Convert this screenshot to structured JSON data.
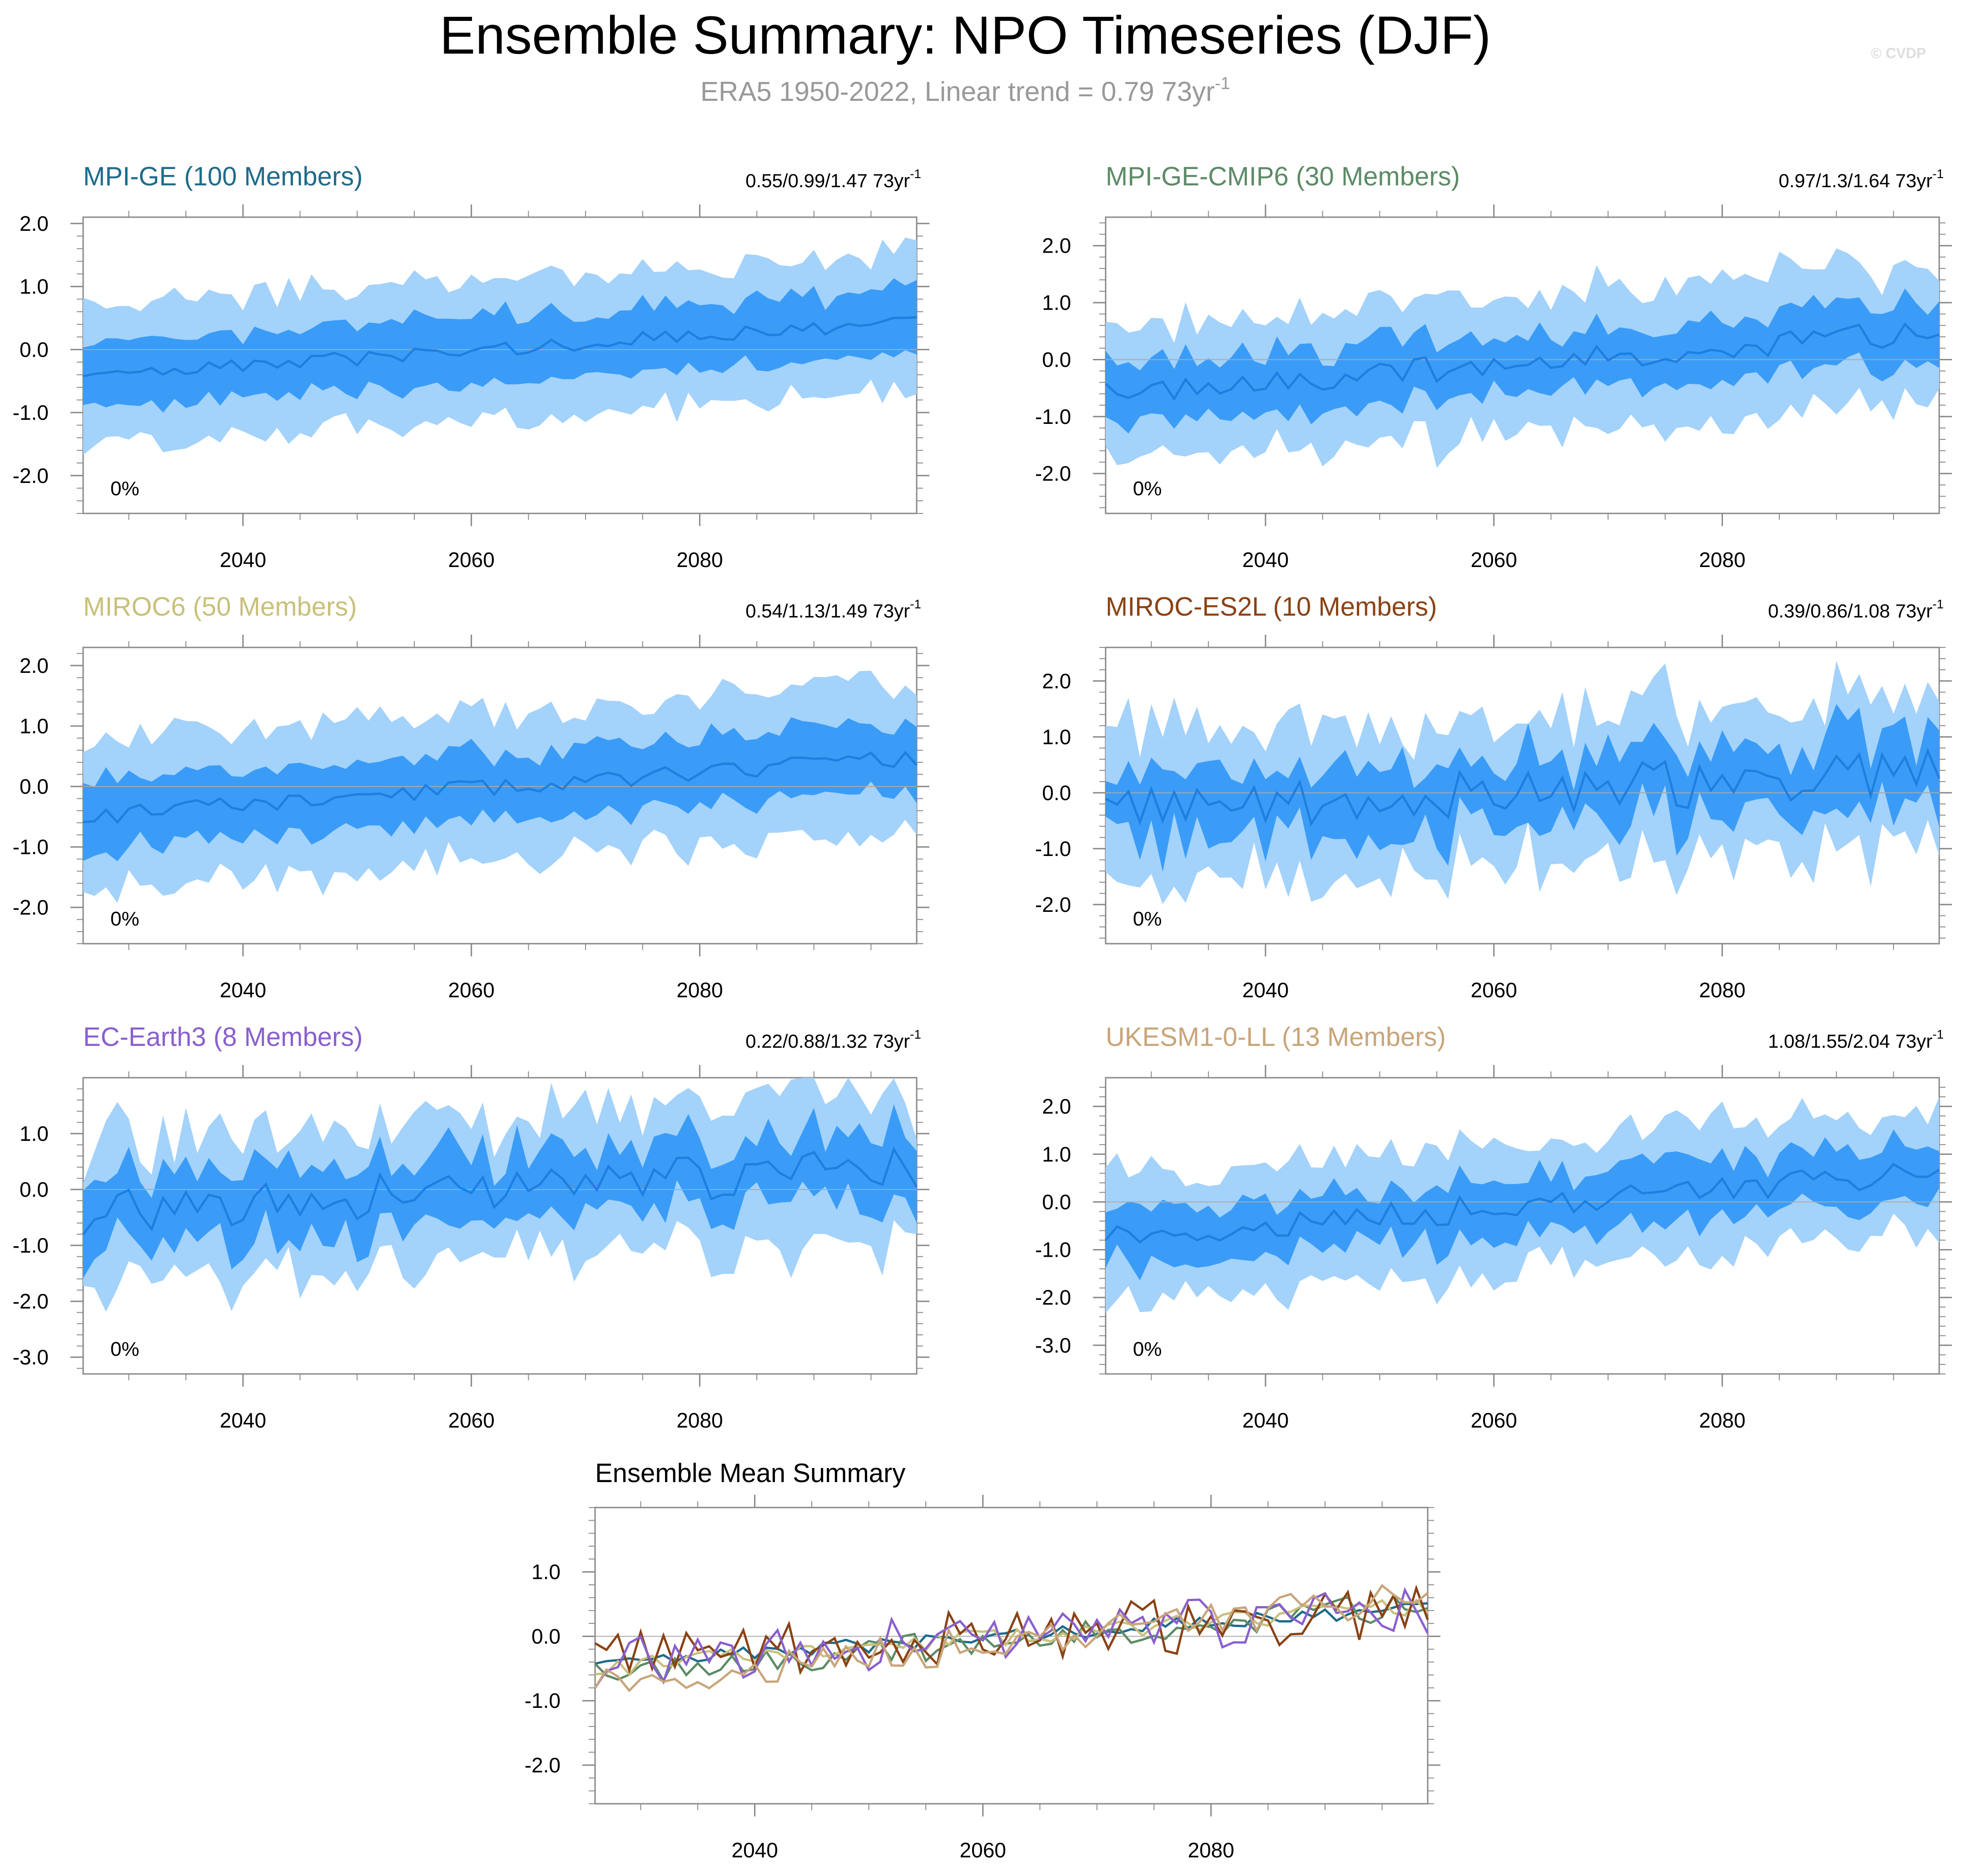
{
  "figure": {
    "title": "Ensemble Summary: NPO Timeseries (DJF)",
    "subtitle": "ERA5 1950-2022, Linear trend = 0.79 73yr",
    "subtitle_sup": "-1",
    "watermark": "© CVDP"
  },
  "colors": {
    "outer_band": "#a3d2fb",
    "inner_band": "#3a9cf7",
    "mean_line": "#1e7fe0",
    "axis": "#888888",
    "zero_line": "#aaaaaa",
    "subtitle": "#999999",
    "watermark": "#dddddd"
  },
  "chart_data": [
    {
      "id": "mpi-ge",
      "type": "area",
      "title": "MPI-GE (100 Members)",
      "title_color": "#1f6b8a",
      "trend_text": "0.55/0.99/1.47 73yr",
      "trend_sup": "-1",
      "percent_label": "0%",
      "ylim": [
        -2.6,
        2.1
      ],
      "yticks": [
        "2.0",
        "1.0",
        "0.0",
        "-1.0",
        "-2.0"
      ],
      "ytick_values": [
        2,
        1,
        0,
        -1,
        -2
      ],
      "xlim": [
        2026,
        2099
      ],
      "xticks": [
        "2040",
        "2060",
        "2080"
      ],
      "xtick_values": [
        2040,
        2060,
        2080
      ],
      "x_start": 2026,
      "x_end": 2099,
      "trend_start": -0.45,
      "trend_slope": 0.0125,
      "inner_half": 0.55,
      "outer_half": 1.12,
      "noise_amp": 0.12,
      "seed": 3
    },
    {
      "id": "mpi-ge-cmip6",
      "type": "area",
      "title": "MPI-GE-CMIP6 (30 Members)",
      "title_color": "#5c8b66",
      "trend_text": "0.97/1.3/1.64 73yr",
      "trend_sup": "-1",
      "percent_label": "0%",
      "ylim": [
        -2.7,
        2.5
      ],
      "yticks": [
        "2.0",
        "1.0",
        "0.0",
        "-1.0",
        "-2.0"
      ],
      "ytick_values": [
        2,
        1,
        0,
        -1,
        -2
      ],
      "xlim": [
        2026,
        2099
      ],
      "xticks": [
        "2040",
        "2060",
        "2080"
      ],
      "xtick_values": [
        2040,
        2060,
        2080
      ],
      "x_start": 2026,
      "x_end": 2099,
      "trend_start": -0.6,
      "trend_slope": 0.015,
      "inner_half": 0.55,
      "outer_half": 1.2,
      "noise_amp": 0.22,
      "seed": 7
    },
    {
      "id": "miroc6",
      "type": "area",
      "title": "MIROC6 (50 Members)",
      "title_color": "#c9c07a",
      "trend_text": "0.54/1.13/1.49 73yr",
      "trend_sup": "-1",
      "percent_label": "0%",
      "ylim": [
        -2.6,
        2.3
      ],
      "yticks": [
        "2.0",
        "1.0",
        "0.0",
        "-1.0",
        "-2.0"
      ],
      "ytick_values": [
        2,
        1,
        0,
        -1,
        -2
      ],
      "xlim": [
        2026,
        2099
      ],
      "xticks": [
        "2040",
        "2060",
        "2080"
      ],
      "xtick_values": [
        2040,
        2060,
        2080
      ],
      "x_start": 2026,
      "x_end": 2099,
      "trend_start": -0.5,
      "trend_slope": 0.0135,
      "inner_half": 0.6,
      "outer_half": 1.22,
      "noise_amp": 0.14,
      "seed": 11
    },
    {
      "id": "miroc-es2l",
      "type": "area",
      "title": "MIROC-ES2L (10 Members)",
      "title_color": "#8a4214",
      "trend_text": "0.39/0.86/1.08 73yr",
      "trend_sup": "-1",
      "percent_label": "0%",
      "ylim": [
        -2.7,
        2.6
      ],
      "yticks": [
        "2.0",
        "1.0",
        "0.0",
        "-1.0",
        "-2.0"
      ],
      "ytick_values": [
        2,
        1,
        0,
        -1,
        -2
      ],
      "xlim": [
        2026,
        2099
      ],
      "xticks": [
        "2040",
        "2060",
        "2080"
      ],
      "xtick_values": [
        2040,
        2060,
        2080
      ],
      "x_start": 2026,
      "x_end": 2099,
      "trend_start": -0.35,
      "trend_slope": 0.01,
      "inner_half": 0.65,
      "outer_half": 1.3,
      "noise_amp": 0.45,
      "seed": 19
    },
    {
      "id": "ec-earth3",
      "type": "area",
      "title": "EC-Earth3 (8 Members)",
      "title_color": "#8a5fcf",
      "trend_text": "0.22/0.88/1.32 73yr",
      "trend_sup": "-1",
      "percent_label": "0%",
      "ylim": [
        -3.3,
        2.0
      ],
      "yticks": [
        "1.0",
        "0.0",
        "-1.0",
        "-2.0",
        "-3.0"
      ],
      "ytick_values": [
        1,
        0,
        -1,
        -2,
        -3
      ],
      "xlim": [
        2026,
        2099
      ],
      "xticks": [
        "2040",
        "2060",
        "2080"
      ],
      "xtick_values": [
        2040,
        2060,
        2080
      ],
      "x_start": 2026,
      "x_end": 2099,
      "trend_start": -0.45,
      "trend_slope": 0.012,
      "inner_half": 0.65,
      "outer_half": 1.3,
      "noise_amp": 0.4,
      "seed": 23
    },
    {
      "id": "ukesm1-0-ll",
      "type": "area",
      "title": "UKESM1-0-LL (13 Members)",
      "title_color": "#c8a57a",
      "trend_text": "1.08/1.55/2.04 73yr",
      "trend_sup": "-1",
      "percent_label": "0%",
      "ylim": [
        -3.6,
        2.6
      ],
      "yticks": [
        "2.0",
        "1.0",
        "0.0",
        "-1.0",
        "-2.0",
        "-3.0"
      ],
      "ytick_values": [
        2,
        1,
        0,
        -1,
        -2,
        -3
      ],
      "xlim": [
        2026,
        2099
      ],
      "xticks": [
        "2040",
        "2060",
        "2080"
      ],
      "xtick_values": [
        2040,
        2060,
        2080
      ],
      "x_start": 2026,
      "x_end": 2099,
      "trend_start": -0.8,
      "trend_slope": 0.02,
      "inner_half": 0.62,
      "outer_half": 1.35,
      "noise_amp": 0.28,
      "seed": 29
    },
    {
      "id": "ensemble-mean",
      "type": "line",
      "title": "Ensemble Mean Summary",
      "ylim": [
        -2.6,
        2.0
      ],
      "yticks": [
        "1.0",
        "0.0",
        "-1.0",
        "-2.0"
      ],
      "ytick_values": [
        1,
        0,
        -1,
        -2
      ],
      "xlim": [
        2026,
        2099
      ],
      "xticks": [
        "2040",
        "2060",
        "2080"
      ],
      "xtick_values": [
        2040,
        2060,
        2080
      ],
      "x_start": 2026,
      "x_end": 2099,
      "series": [
        {
          "name": "MPI-GE",
          "color": "#1f6b8a",
          "trend_start": -0.45,
          "trend_slope": 0.0125,
          "noise_amp": 0.12,
          "seed": 3
        },
        {
          "name": "MPI-GE-CMIP6",
          "color": "#5c8b66",
          "trend_start": -0.6,
          "trend_slope": 0.015,
          "noise_amp": 0.22,
          "seed": 7
        },
        {
          "name": "MIROC6",
          "color": "#c9c07a",
          "trend_start": -0.5,
          "trend_slope": 0.0135,
          "noise_amp": 0.14,
          "seed": 11
        },
        {
          "name": "MIROC-ES2L",
          "color": "#8a4214",
          "trend_start": -0.35,
          "trend_slope": 0.01,
          "noise_amp": 0.45,
          "seed": 19
        },
        {
          "name": "EC-Earth3",
          "color": "#8a5fcf",
          "trend_start": -0.45,
          "trend_slope": 0.012,
          "noise_amp": 0.4,
          "seed": 23
        },
        {
          "name": "UKESM1-0-LL",
          "color": "#c8a57a",
          "trend_start": -0.8,
          "trend_slope": 0.02,
          "noise_amp": 0.28,
          "seed": 29
        }
      ]
    }
  ]
}
